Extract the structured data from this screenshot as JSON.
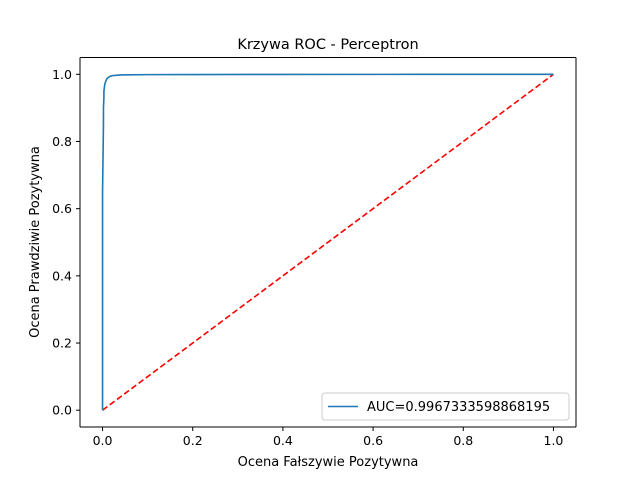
{
  "chart_data": {
    "type": "line",
    "title": "Krzywa ROC - Perceptron",
    "xlabel": "Ocena Fałszywie Pozytywna",
    "ylabel": "Ocena Prawdziwie Pozytywna",
    "xlim": [
      -0.05,
      1.05
    ],
    "ylim": [
      -0.05,
      1.05
    ],
    "xticks": [
      0.0,
      0.2,
      0.4,
      0.6,
      0.8,
      1.0
    ],
    "yticks": [
      0.0,
      0.2,
      0.4,
      0.6,
      0.8,
      1.0
    ],
    "xtick_labels": [
      "0.0",
      "0.2",
      "0.4",
      "0.6",
      "0.8",
      "1.0"
    ],
    "ytick_labels": [
      "0.0",
      "0.2",
      "0.4",
      "0.6",
      "0.8",
      "1.0"
    ],
    "grid": false,
    "legend_position": "lower-right",
    "series": [
      {
        "name": "AUC=0.9967333598868195",
        "color": "#1f77b4",
        "style": "solid",
        "x": [
          0.0,
          0.0,
          0.001,
          0.002,
          0.002,
          0.003,
          0.003,
          0.004,
          0.005,
          0.006,
          0.008,
          0.01,
          0.013,
          0.017,
          0.022,
          0.03,
          0.04,
          0.06,
          0.1,
          0.2,
          0.4,
          0.7,
          1.0
        ],
        "y": [
          0.0,
          0.65,
          0.75,
          0.85,
          0.9,
          0.93,
          0.95,
          0.96,
          0.97,
          0.975,
          0.982,
          0.987,
          0.991,
          0.994,
          0.996,
          0.997,
          0.998,
          0.9985,
          0.999,
          0.9993,
          0.9996,
          0.9998,
          1.0
        ]
      },
      {
        "name": "",
        "color": "#ff0000",
        "style": "dashed",
        "x": [
          0.0,
          1.0
        ],
        "y": [
          0.0,
          1.0
        ]
      }
    ]
  }
}
